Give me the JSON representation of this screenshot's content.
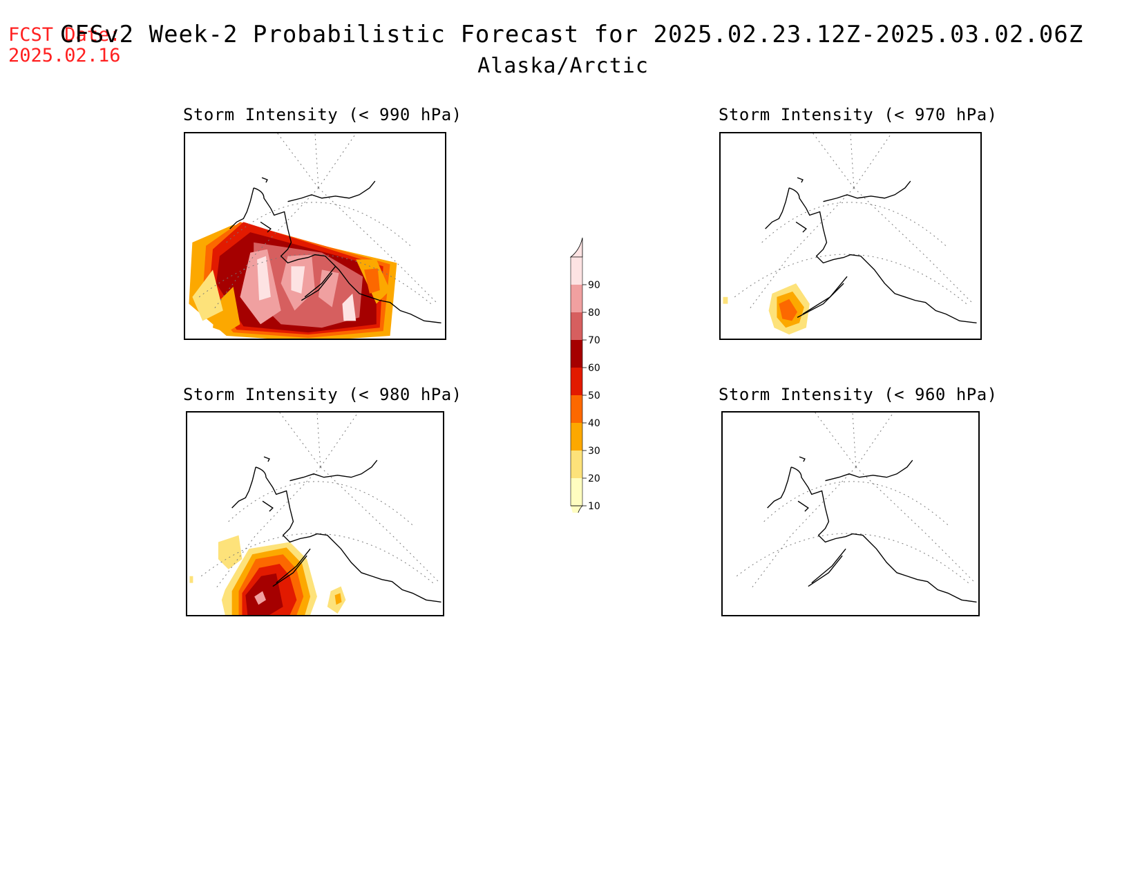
{
  "header": {
    "fcst_label": "FCST Date:",
    "fcst_date": "2025.02.16",
    "title": "CFSv2 Week-2 Probabilistic Forecast for 2025.02.23.12Z-2025.03.02.06Z",
    "subtitle": "Alaska/Arctic"
  },
  "panels": [
    {
      "title": "Storm Intensity (< 990 hPa)"
    },
    {
      "title": "Storm Intensity (< 970 hPa)"
    },
    {
      "title": "Storm Intensity (< 980 hPa)"
    },
    {
      "title": "Storm Intensity (< 960 hPa)"
    }
  ],
  "colorbar": {
    "levels": [
      "10",
      "20",
      "30",
      "40",
      "50",
      "60",
      "70",
      "80",
      "90"
    ],
    "colors": [
      "#fffdc0",
      "#fde27a",
      "#fca800",
      "#fc6800",
      "#e21a00",
      "#a50000",
      "#d65f5f",
      "#f0a0a0",
      "#fde3e3"
    ]
  }
}
